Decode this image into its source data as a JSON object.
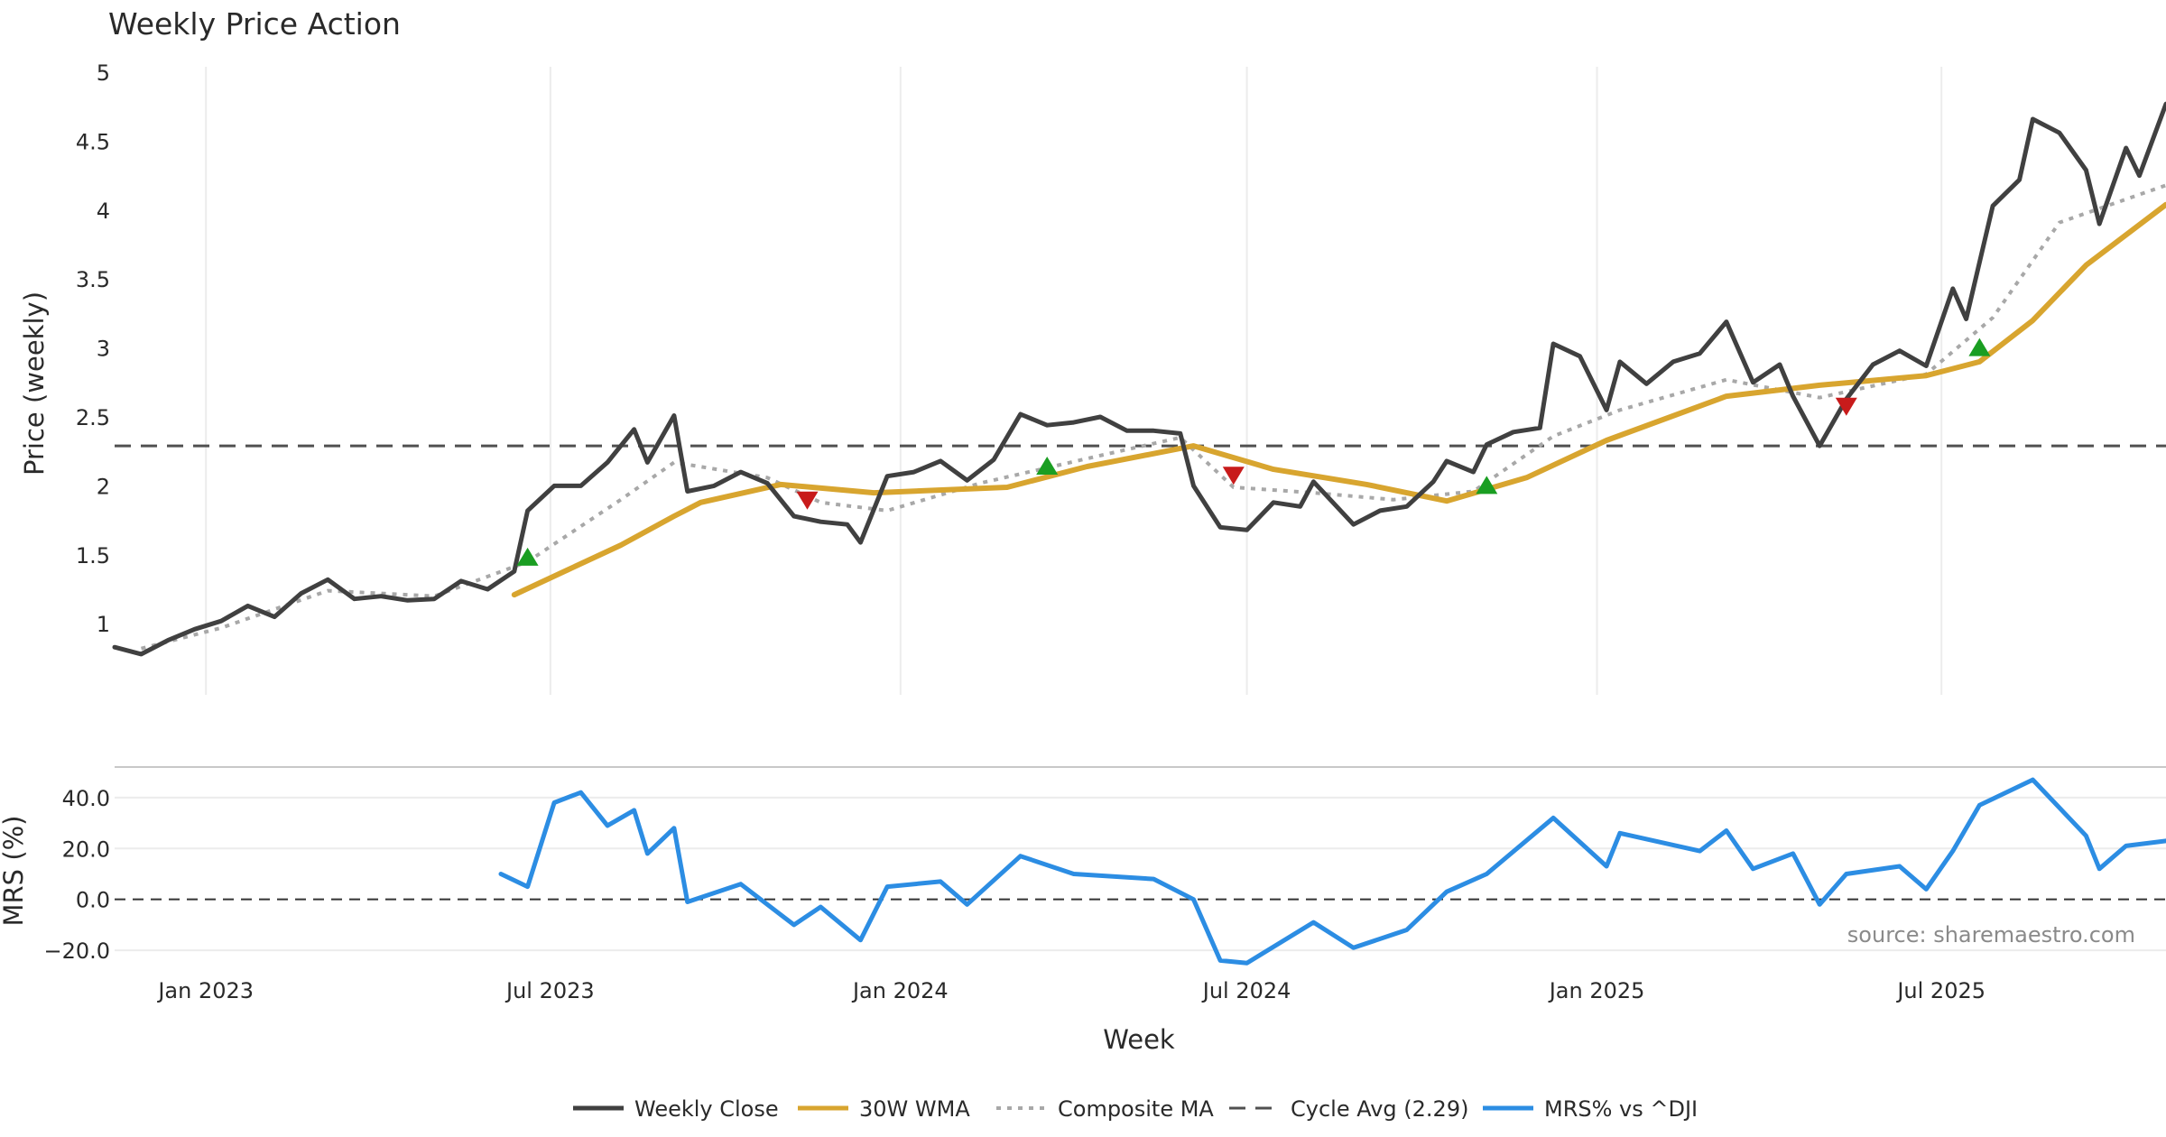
{
  "chart_data": {
    "type": "line",
    "title": "Weekly Price Action",
    "xlabel": "Week",
    "source": "source: sharemaestro.com",
    "colors": {
      "close": "#404040",
      "wma": "#d8a52f",
      "composite": "#a8a8a8",
      "cycle": "#505050",
      "mrs": "#2c8de3",
      "buy": "#1a9e22",
      "sell": "#c81b1b"
    },
    "x_range": [
      "2022-11-14",
      "2025-10-27"
    ],
    "x_ticks": [
      {
        "date": "2023-01-01",
        "label": "Jan 2023"
      },
      {
        "date": "2023-07-01",
        "label": "Jul 2023"
      },
      {
        "date": "2024-01-01",
        "label": "Jan 2024"
      },
      {
        "date": "2024-07-01",
        "label": "Jul 2024"
      },
      {
        "date": "2025-01-01",
        "label": "Jan 2025"
      },
      {
        "date": "2025-07-01",
        "label": "Jul 2025"
      }
    ],
    "price_panel": {
      "ylabel": "Price (weekly)",
      "ylim": [
        0.55,
        5.0
      ],
      "y_ticks": [
        {
          "v": 1,
          "label": "1"
        },
        {
          "v": 1.5,
          "label": "1.5"
        },
        {
          "v": 2,
          "label": "2"
        },
        {
          "v": 2.5,
          "label": "2.5"
        },
        {
          "v": 3,
          "label": "3"
        },
        {
          "v": 3.5,
          "label": "3.5"
        },
        {
          "v": 4,
          "label": "4"
        },
        {
          "v": 4.5,
          "label": "4.5"
        },
        {
          "v": 5,
          "label": "5"
        }
      ],
      "cycle_avg": 2.29
    },
    "mrs_panel": {
      "ylabel": "MRS (%)",
      "ylim": [
        -26,
        52
      ],
      "y_ticks": [
        {
          "v": 40,
          "label": "40.0"
        },
        {
          "v": 20,
          "label": "20.0"
        },
        {
          "v": 0,
          "label": "0.0"
        },
        {
          "v": -20,
          "label": "−20.0"
        }
      ]
    },
    "legend": [
      {
        "label": "Weekly Close",
        "style": "solid",
        "color": "#404040"
      },
      {
        "label": "30W WMA",
        "style": "solid",
        "color": "#d8a52f"
      },
      {
        "label": "Composite MA",
        "style": "dotted",
        "color": "#a8a8a8"
      },
      {
        "label": "Cycle Avg (2.29)",
        "style": "dashed",
        "color": "#505050"
      },
      {
        "label": "MRS% vs ^DJI",
        "style": "solid",
        "color": "#2c8de3"
      }
    ],
    "series": [
      {
        "name": "Weekly Close",
        "points": [
          [
            "2022-11-14",
            0.83
          ],
          [
            "2022-11-28",
            0.78
          ],
          [
            "2022-12-12",
            0.88
          ],
          [
            "2022-12-26",
            0.96
          ],
          [
            "2023-01-09",
            1.02
          ],
          [
            "2023-01-23",
            1.13
          ],
          [
            "2023-02-06",
            1.05
          ],
          [
            "2023-02-20",
            1.22
          ],
          [
            "2023-03-06",
            1.32
          ],
          [
            "2023-03-20",
            1.18
          ],
          [
            "2023-04-03",
            1.2
          ],
          [
            "2023-04-17",
            1.17
          ],
          [
            "2023-05-01",
            1.18
          ],
          [
            "2023-05-15",
            1.31
          ],
          [
            "2023-05-29",
            1.25
          ],
          [
            "2023-06-12",
            1.38
          ],
          [
            "2023-06-19",
            1.82
          ],
          [
            "2023-07-03",
            2.0
          ],
          [
            "2023-07-17",
            2.0
          ],
          [
            "2023-07-31",
            2.17
          ],
          [
            "2023-08-14",
            2.41
          ],
          [
            "2023-08-21",
            2.17
          ],
          [
            "2023-09-04",
            2.51
          ],
          [
            "2023-09-11",
            1.96
          ],
          [
            "2023-09-25",
            2.0
          ],
          [
            "2023-10-09",
            2.1
          ],
          [
            "2023-10-23",
            2.02
          ],
          [
            "2023-11-06",
            1.78
          ],
          [
            "2023-11-20",
            1.74
          ],
          [
            "2023-12-04",
            1.72
          ],
          [
            "2023-12-11",
            1.59
          ],
          [
            "2023-12-25",
            2.07
          ],
          [
            "2024-01-08",
            2.1
          ],
          [
            "2024-01-22",
            2.18
          ],
          [
            "2024-02-05",
            2.04
          ],
          [
            "2024-02-19",
            2.19
          ],
          [
            "2024-03-04",
            2.52
          ],
          [
            "2024-03-18",
            2.44
          ],
          [
            "2024-04-01",
            2.46
          ],
          [
            "2024-04-15",
            2.5
          ],
          [
            "2024-04-29",
            2.4
          ],
          [
            "2024-05-13",
            2.4
          ],
          [
            "2024-05-27",
            2.38
          ],
          [
            "2024-06-03",
            2.0
          ],
          [
            "2024-06-17",
            1.7
          ],
          [
            "2024-07-01",
            1.68
          ],
          [
            "2024-07-15",
            1.88
          ],
          [
            "2024-07-29",
            1.85
          ],
          [
            "2024-08-05",
            2.03
          ],
          [
            "2024-08-26",
            1.72
          ],
          [
            "2024-09-09",
            1.82
          ],
          [
            "2024-09-23",
            1.85
          ],
          [
            "2024-10-07",
            2.03
          ],
          [
            "2024-10-14",
            2.18
          ],
          [
            "2024-10-28",
            2.1
          ],
          [
            "2024-11-04",
            2.3
          ],
          [
            "2024-11-18",
            2.39
          ],
          [
            "2024-12-02",
            2.42
          ],
          [
            "2024-12-09",
            3.03
          ],
          [
            "2024-12-23",
            2.94
          ],
          [
            "2025-01-06",
            2.55
          ],
          [
            "2025-01-13",
            2.9
          ],
          [
            "2025-01-27",
            2.74
          ],
          [
            "2025-02-10",
            2.9
          ],
          [
            "2025-02-24",
            2.96
          ],
          [
            "2025-03-10",
            3.19
          ],
          [
            "2025-03-24",
            2.75
          ],
          [
            "2025-04-07",
            2.88
          ],
          [
            "2025-04-14",
            2.65
          ],
          [
            "2025-04-28",
            2.29
          ],
          [
            "2025-05-12",
            2.63
          ],
          [
            "2025-05-26",
            2.88
          ],
          [
            "2025-06-09",
            2.98
          ],
          [
            "2025-06-23",
            2.87
          ],
          [
            "2025-07-07",
            3.43
          ],
          [
            "2025-07-14",
            3.21
          ],
          [
            "2025-07-28",
            4.03
          ],
          [
            "2025-08-11",
            4.22
          ],
          [
            "2025-08-18",
            4.66
          ],
          [
            "2025-09-01",
            4.56
          ],
          [
            "2025-09-15",
            4.29
          ],
          [
            "2025-09-22",
            3.9
          ],
          [
            "2025-10-06",
            4.45
          ],
          [
            "2025-10-13",
            4.25
          ],
          [
            "2025-10-27",
            4.77
          ]
        ]
      },
      {
        "name": "30W WMA",
        "points": [
          [
            "2023-06-12",
            1.21
          ],
          [
            "2023-07-10",
            1.39
          ],
          [
            "2023-08-07",
            1.57
          ],
          [
            "2023-09-04",
            1.78
          ],
          [
            "2023-09-18",
            1.88
          ],
          [
            "2023-10-30",
            2.01
          ],
          [
            "2023-12-18",
            1.95
          ],
          [
            "2024-02-26",
            1.99
          ],
          [
            "2024-04-08",
            2.14
          ],
          [
            "2024-06-03",
            2.29
          ],
          [
            "2024-07-15",
            2.12
          ],
          [
            "2024-09-02",
            2.01
          ],
          [
            "2024-10-14",
            1.89
          ],
          [
            "2024-11-25",
            2.06
          ],
          [
            "2025-01-06",
            2.33
          ],
          [
            "2025-03-10",
            2.65
          ],
          [
            "2025-04-28",
            2.73
          ],
          [
            "2025-06-23",
            2.8
          ],
          [
            "2025-07-21",
            2.9
          ],
          [
            "2025-08-18",
            3.2
          ],
          [
            "2025-09-15",
            3.6
          ],
          [
            "2025-10-27",
            4.04
          ]
        ]
      },
      {
        "name": "Composite MA",
        "points": [
          [
            "2022-11-28",
            0.82
          ],
          [
            "2023-01-09",
            0.97
          ],
          [
            "2023-03-06",
            1.24
          ],
          [
            "2023-05-01",
            1.2
          ],
          [
            "2023-06-19",
            1.45
          ],
          [
            "2023-08-07",
            1.9
          ],
          [
            "2023-09-04",
            2.17
          ],
          [
            "2023-10-23",
            2.06
          ],
          [
            "2023-11-20",
            1.88
          ],
          [
            "2023-12-25",
            1.82
          ],
          [
            "2024-02-12",
            2.02
          ],
          [
            "2024-04-15",
            2.22
          ],
          [
            "2024-05-27",
            2.35
          ],
          [
            "2024-06-24",
            1.99
          ],
          [
            "2024-08-05",
            1.95
          ],
          [
            "2024-09-16",
            1.9
          ],
          [
            "2024-10-28",
            1.96
          ],
          [
            "2024-12-09",
            2.36
          ],
          [
            "2025-01-13",
            2.55
          ],
          [
            "2025-03-10",
            2.77
          ],
          [
            "2025-04-28",
            2.64
          ],
          [
            "2025-06-23",
            2.81
          ],
          [
            "2025-07-28",
            3.22
          ],
          [
            "2025-09-01",
            3.91
          ],
          [
            "2025-10-27",
            4.18
          ]
        ]
      },
      {
        "name": "MRS% vs ^DJI",
        "points": [
          [
            "2023-06-05",
            10
          ],
          [
            "2023-06-19",
            5
          ],
          [
            "2023-07-03",
            38
          ],
          [
            "2023-07-17",
            42
          ],
          [
            "2023-07-31",
            29
          ],
          [
            "2023-08-14",
            35
          ],
          [
            "2023-08-21",
            18
          ],
          [
            "2023-09-04",
            28
          ],
          [
            "2023-09-11",
            -1
          ],
          [
            "2023-10-09",
            6
          ],
          [
            "2023-11-06",
            -10
          ],
          [
            "2023-11-20",
            -3
          ],
          [
            "2023-12-11",
            -16
          ],
          [
            "2023-12-25",
            5
          ],
          [
            "2024-01-22",
            7
          ],
          [
            "2024-02-05",
            -2
          ],
          [
            "2024-03-04",
            17
          ],
          [
            "2024-04-01",
            10
          ],
          [
            "2024-05-13",
            8
          ],
          [
            "2024-06-03",
            0
          ],
          [
            "2024-06-17",
            -24
          ],
          [
            "2024-07-01",
            -25
          ],
          [
            "2024-08-05",
            -9
          ],
          [
            "2024-08-26",
            -19
          ],
          [
            "2024-09-23",
            -12
          ],
          [
            "2024-10-14",
            3
          ],
          [
            "2024-11-04",
            10
          ],
          [
            "2024-12-09",
            32
          ],
          [
            "2025-01-06",
            13
          ],
          [
            "2025-01-13",
            26
          ],
          [
            "2025-02-24",
            19
          ],
          [
            "2025-03-10",
            27
          ],
          [
            "2025-03-24",
            12
          ],
          [
            "2025-04-14",
            18
          ],
          [
            "2025-04-28",
            -2
          ],
          [
            "2025-05-12",
            10
          ],
          [
            "2025-06-09",
            13
          ],
          [
            "2025-06-23",
            4
          ],
          [
            "2025-07-07",
            19
          ],
          [
            "2025-07-21",
            37
          ],
          [
            "2025-08-18",
            47
          ],
          [
            "2025-09-15",
            25
          ],
          [
            "2025-09-22",
            12
          ],
          [
            "2025-10-06",
            21
          ],
          [
            "2025-10-27",
            23
          ]
        ]
      }
    ],
    "signals": [
      {
        "type": "buy",
        "date": "2023-06-19",
        "value": 1.48
      },
      {
        "type": "sell",
        "date": "2023-11-13",
        "value": 1.9
      },
      {
        "type": "buy",
        "date": "2024-03-18",
        "value": 2.14
      },
      {
        "type": "sell",
        "date": "2024-06-24",
        "value": 2.08
      },
      {
        "type": "buy",
        "date": "2024-11-04",
        "value": 2.0
      },
      {
        "type": "sell",
        "date": "2025-05-12",
        "value": 2.58
      },
      {
        "type": "buy",
        "date": "2025-07-21",
        "value": 3.0
      }
    ]
  }
}
